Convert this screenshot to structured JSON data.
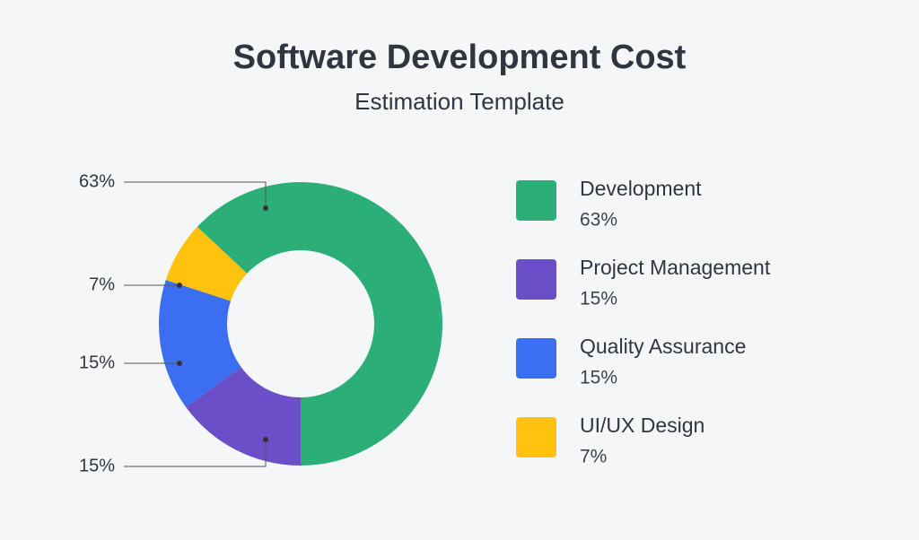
{
  "chart_data": {
    "type": "donut",
    "title": "Software Development Cost",
    "subtitle": "Estimation Template",
    "categories": [
      "Development",
      "Project Management",
      "Quality Assurance",
      "UI/UX Design"
    ],
    "values": [
      63,
      15,
      15,
      7
    ],
    "value_labels": [
      "63%",
      "15%",
      "15%",
      "7%"
    ],
    "colors": [
      "#2bae77",
      "#6a4fc9",
      "#3b6ef0",
      "#ffc20e"
    ]
  }
}
